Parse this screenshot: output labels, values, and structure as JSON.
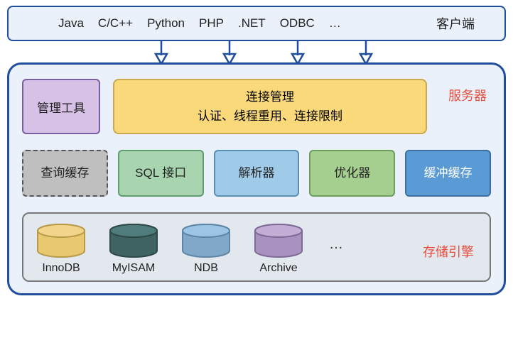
{
  "client": {
    "langs": [
      "Java",
      "C/C++",
      "Python",
      "PHP",
      ".NET",
      "ODBC",
      "…"
    ],
    "label": "客户端"
  },
  "arrows": {
    "count": 4,
    "stroke": "#1f4e9c"
  },
  "server": {
    "label": "服务器",
    "mgmt_tool": "管理工具",
    "conn_mgmt": {
      "title": "连接管理",
      "subtitle": "认证、线程重用、连接限制"
    },
    "components": [
      {
        "label": "查询缓存",
        "cls": "qcache"
      },
      {
        "label": "SQL 接口",
        "cls": "sqlif"
      },
      {
        "label": "解析器",
        "cls": "parser"
      },
      {
        "label": "优化器",
        "cls": "optim"
      },
      {
        "label": "缓冲\n缓存",
        "cls": "bufc"
      }
    ],
    "storage": {
      "label": "存储引擎",
      "engines": [
        {
          "name": "InnoDB",
          "top": "#f2d58a",
          "side": "#e8c970",
          "stroke": "#b89a4a"
        },
        {
          "name": "MyISAM",
          "top": "#4f7d7b",
          "side": "#3e6362",
          "stroke": "#2d4847"
        },
        {
          "name": "NDB",
          "top": "#9cc4e4",
          "side": "#7fa8c9",
          "stroke": "#5c85a6"
        },
        {
          "name": "Archive",
          "top": "#c3aed6",
          "side": "#a992bf",
          "stroke": "#7d6a94"
        }
      ],
      "ellipsis": "…"
    }
  },
  "colors": {
    "border_main": "#1f4e9c",
    "bg_light": "#eaf1fa",
    "accent_red": "#e84c3d"
  }
}
